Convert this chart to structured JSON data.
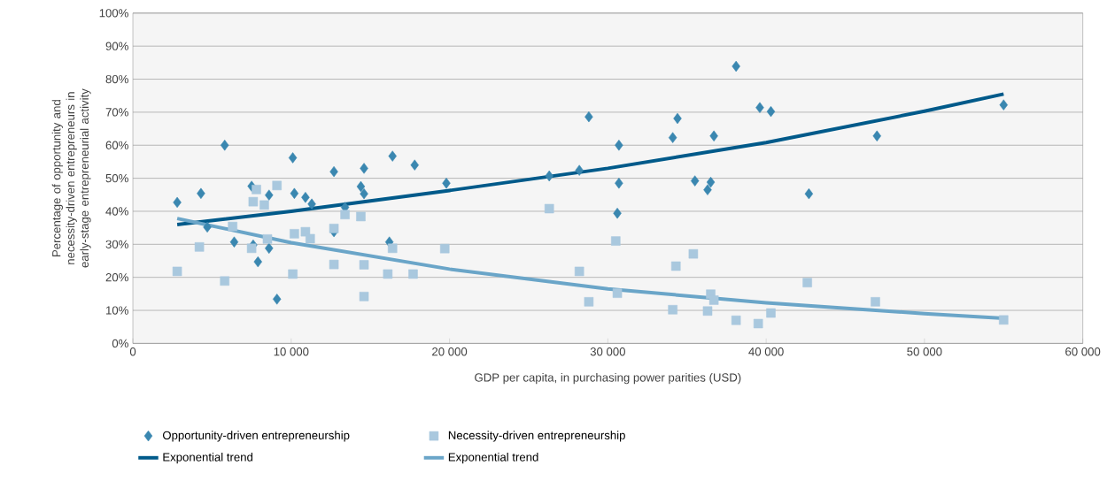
{
  "chart_data": {
    "type": "scatter",
    "xlabel": "GDP per capita, in purchasing power parities (USD)",
    "ylabel": "Percentage of opportunity and necessity-driven entrepreneurs in early-stage entrepreneurial activity",
    "xlim": [
      0,
      60000
    ],
    "ylim": [
      0,
      100
    ],
    "xticks": [
      0,
      {
        "value": 10000,
        "label": "10 000"
      },
      {
        "value": 20000,
        "label": "20 000"
      },
      {
        "value": 30000,
        "label": "30 000"
      },
      {
        "value": 40000,
        "label": "40 000"
      },
      {
        "value": 50000,
        "label": "50 000"
      },
      {
        "value": 60000,
        "label": "60 000"
      }
    ],
    "yticks": [
      {
        "value": 0,
        "label": "0%"
      },
      {
        "value": 10,
        "label": "10%"
      },
      {
        "value": 20,
        "label": "20%"
      },
      {
        "value": 30,
        "label": "30%"
      },
      {
        "value": 40,
        "label": "40%"
      },
      {
        "value": 50,
        "label": "50%"
      },
      {
        "value": 60,
        "label": "60%"
      },
      {
        "value": 70,
        "label": "70%"
      },
      {
        "value": 80,
        "label": "80%"
      },
      {
        "value": 90,
        "label": "90%"
      },
      {
        "value": 100,
        "label": "100%"
      }
    ],
    "grid": "y",
    "legend": "bottom",
    "series": [
      {
        "name": "Opportunity-driven entrepreneurship",
        "marker": "diamond",
        "color": "#3a87b0",
        "x": [
          2800,
          4300,
          4700,
          5800,
          6400,
          7500,
          7600,
          7900,
          8600,
          8600,
          9100,
          10100,
          10200,
          10900,
          11300,
          12700,
          12700,
          13400,
          14400,
          14600,
          14600,
          16200,
          16400,
          17800,
          19800,
          26300,
          28200,
          28800,
          30600,
          30700,
          30700,
          34100,
          34400,
          35500,
          36300,
          36500,
          36700,
          38100,
          39600,
          40300,
          42700,
          47000,
          55000
        ],
        "values": [
          42.7,
          45.4,
          35.2,
          60.0,
          30.7,
          47.6,
          29.8,
          24.7,
          44.9,
          28.8,
          13.4,
          56.2,
          45.4,
          44.2,
          42.2,
          52.0,
          33.8,
          41.2,
          47.5,
          53.0,
          45.3,
          30.7,
          56.7,
          54.0,
          48.5,
          50.7,
          52.4,
          68.6,
          39.4,
          60.0,
          48.5,
          62.3,
          68.1,
          49.2,
          46.5,
          48.8,
          62.8,
          83.9,
          71.4,
          70.2,
          45.3,
          62.8,
          72.2
        ]
      },
      {
        "name": "Necessity-driven entrepreneurship",
        "marker": "square",
        "color": "#a9c8de",
        "x": [
          2800,
          4200,
          5800,
          6300,
          7500,
          7600,
          7800,
          8300,
          8500,
          9100,
          10100,
          10200,
          10900,
          11200,
          12700,
          12700,
          13400,
          14400,
          14600,
          14600,
          16100,
          16400,
          17700,
          19700,
          26300,
          28200,
          28800,
          30500,
          30600,
          34100,
          34300,
          35400,
          36300,
          36500,
          36700,
          38100,
          39500,
          40300,
          42600,
          46900,
          55000
        ],
        "values": [
          21.8,
          29.2,
          18.9,
          35.4,
          28.8,
          42.9,
          46.6,
          41.9,
          31.6,
          47.8,
          21.0,
          33.2,
          33.8,
          31.7,
          23.9,
          34.8,
          39.0,
          38.4,
          23.8,
          14.2,
          21.0,
          28.8,
          21.0,
          28.7,
          40.8,
          21.8,
          12.6,
          31.0,
          15.2,
          10.2,
          23.4,
          27.1,
          9.8,
          14.9,
          13.1,
          7.0,
          6.0,
          9.2,
          18.4,
          12.6,
          7.1
        ]
      },
      {
        "name": "Exponential trend",
        "type": "line",
        "marker": "none",
        "color": "#005a8a",
        "x": [
          2800,
          10000,
          20000,
          30000,
          40000,
          50000,
          55000
        ],
        "values": [
          36.0,
          40.0,
          46.3,
          53.0,
          60.8,
          70.3,
          75.5
        ]
      },
      {
        "name": "Exponential trend",
        "type": "line",
        "marker": "none",
        "color": "#6aa5c8",
        "x": [
          2800,
          10000,
          20000,
          30000,
          40000,
          50000,
          55000
        ],
        "values": [
          37.8,
          30.5,
          22.5,
          16.5,
          12.3,
          9.0,
          7.6
        ]
      }
    ]
  }
}
